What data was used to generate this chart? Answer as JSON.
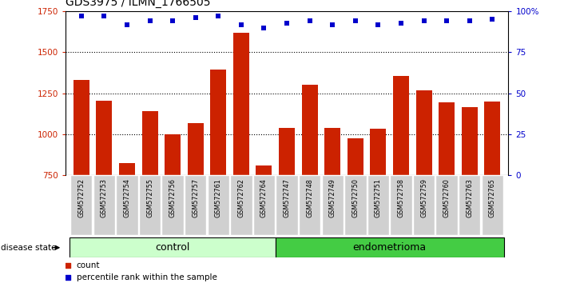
{
  "title": "GDS3975 / ILMN_1766505",
  "samples": [
    "GSM572752",
    "GSM572753",
    "GSM572754",
    "GSM572755",
    "GSM572756",
    "GSM572757",
    "GSM572761",
    "GSM572762",
    "GSM572764",
    "GSM572747",
    "GSM572748",
    "GSM572749",
    "GSM572750",
    "GSM572751",
    "GSM572758",
    "GSM572759",
    "GSM572760",
    "GSM572763",
    "GSM572765"
  ],
  "counts": [
    1330,
    1205,
    825,
    1140,
    1000,
    1070,
    1395,
    1620,
    810,
    1040,
    1305,
    1040,
    975,
    1035,
    1355,
    1270,
    1195,
    1165,
    1200
  ],
  "percentile_ranks": [
    97,
    97,
    92,
    94,
    94,
    96,
    97,
    92,
    90,
    93,
    94,
    92,
    94,
    92,
    93,
    94,
    94,
    94,
    95
  ],
  "ylim_left": [
    750,
    1750
  ],
  "ylim_right": [
    0,
    100
  ],
  "yticks_left": [
    750,
    1000,
    1250,
    1500,
    1750
  ],
  "yticks_right": [
    0,
    25,
    50,
    75,
    100
  ],
  "ytick_labels_right": [
    "0",
    "25",
    "50",
    "75",
    "100%"
  ],
  "bar_color": "#cc2200",
  "dot_color": "#0000cc",
  "control_count": 9,
  "endometrioma_count": 10,
  "group_label_control": "control",
  "group_label_endometrioma": "endometrioma",
  "disease_state_label": "disease state",
  "legend_count_label": "count",
  "legend_percentile_label": "percentile rank within the sample",
  "xticklabel_bg": "#d0d0d0",
  "dotted_grid_values": [
    1000,
    1250,
    1500
  ],
  "title_fontsize": 10,
  "bar_width": 0.7,
  "control_color": "#ccffcc",
  "endometrioma_color": "#44cc44"
}
